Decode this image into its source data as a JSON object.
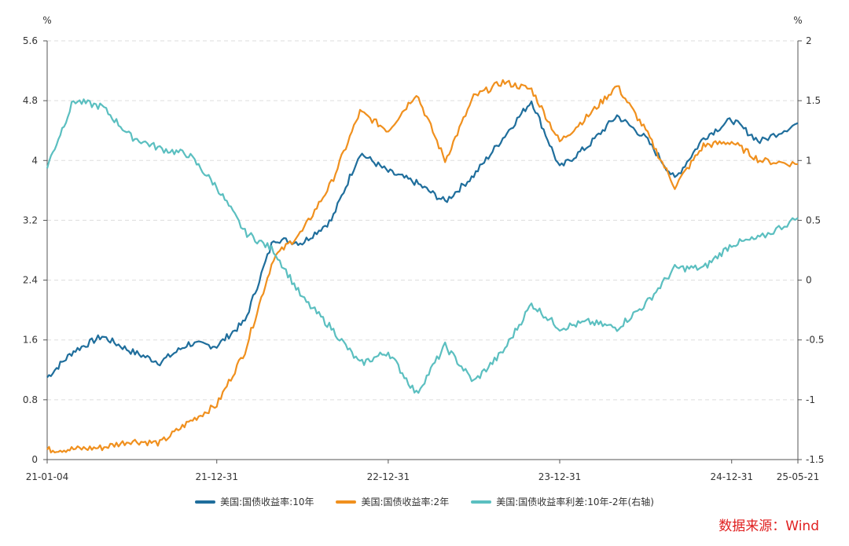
{
  "chart_data": {
    "type": "line",
    "left_unit": "%",
    "right_unit": "%",
    "y_left": {
      "min": 0,
      "max": 5.6,
      "ticks": [
        "0",
        "0.8",
        "1.6",
        "2.4",
        "3.2",
        "4",
        "4.8",
        "5.6"
      ]
    },
    "y_right": {
      "min": -1.5,
      "max": 2,
      "ticks": [
        "-1.5",
        "-1",
        "-0.5",
        "0",
        "0.5",
        "1",
        "1.5",
        "2"
      ]
    },
    "x_ticks": [
      "21-01-04",
      "21-12-31",
      "22-12-31",
      "23-12-31",
      "24-12-31",
      "25-05-21"
    ],
    "x": [
      "21-01-04",
      "21-03-01",
      "21-05-01",
      "21-07-01",
      "21-09-01",
      "21-11-01",
      "21-12-31",
      "22-03-01",
      "22-05-01",
      "22-07-01",
      "22-09-01",
      "22-11-01",
      "22-12-31",
      "23-03-01",
      "23-05-01",
      "23-07-01",
      "23-09-01",
      "23-11-01",
      "23-12-31",
      "24-03-01",
      "24-05-01",
      "24-07-01",
      "24-09-01",
      "24-11-01",
      "24-12-31",
      "25-03-01",
      "25-05-21"
    ],
    "series": [
      {
        "name": "美国:国债收益率:10年",
        "axis": "left",
        "color": "#1f6e9c",
        "values": [
          1.1,
          1.45,
          1.65,
          1.45,
          1.3,
          1.55,
          1.52,
          1.85,
          2.95,
          2.9,
          3.2,
          4.1,
          3.85,
          3.7,
          3.45,
          3.8,
          4.3,
          4.8,
          3.9,
          4.2,
          4.6,
          4.3,
          3.75,
          4.3,
          4.55,
          4.25,
          4.5
        ]
      },
      {
        "name": "美国:国债收益率:2年",
        "axis": "left",
        "color": "#f0901e",
        "values": [
          0.13,
          0.14,
          0.16,
          0.25,
          0.22,
          0.5,
          0.73,
          1.45,
          2.7,
          3.05,
          3.7,
          4.65,
          4.4,
          4.9,
          4.0,
          4.85,
          5.05,
          4.95,
          4.25,
          4.6,
          5.0,
          4.4,
          3.65,
          4.2,
          4.25,
          4.0,
          3.95
        ]
      },
      {
        "name": "美国:国债收益率利差:10年-2年(右轴)",
        "axis": "right",
        "color": "#5bbfc0",
        "values": [
          0.95,
          1.5,
          1.45,
          1.2,
          1.1,
          1.05,
          0.78,
          0.4,
          0.25,
          -0.15,
          -0.4,
          -0.7,
          -0.6,
          -0.95,
          -0.55,
          -0.85,
          -0.6,
          -0.2,
          -0.4,
          -0.35,
          -0.4,
          -0.2,
          0.1,
          0.1,
          0.3,
          0.35,
          0.52
        ]
      }
    ]
  },
  "source": "数据来源：Wind"
}
